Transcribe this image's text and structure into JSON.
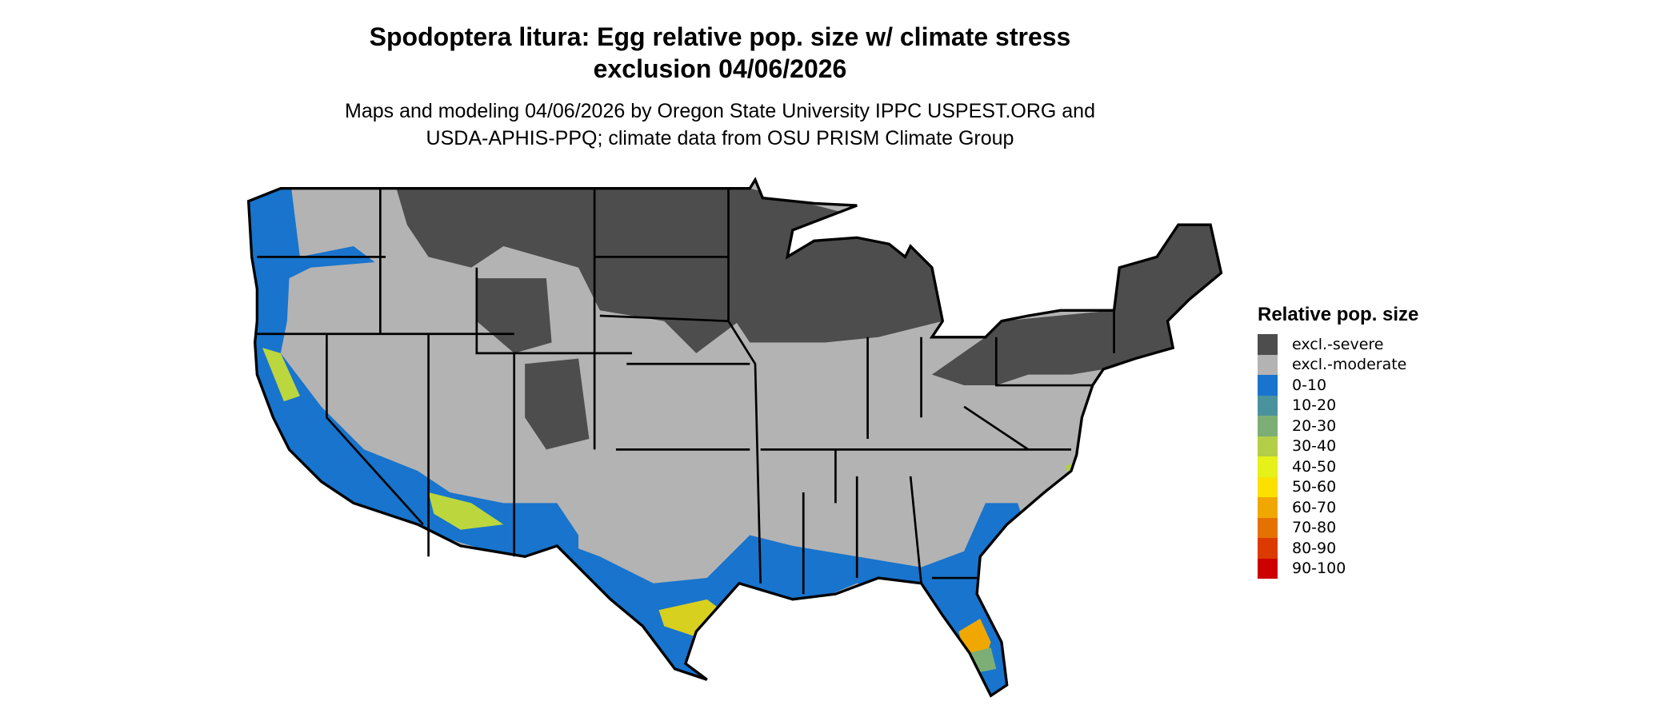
{
  "title": {
    "line1": "Spodoptera litura: Egg relative pop. size w/ climate stress",
    "line2": "exclusion 04/06/2026"
  },
  "subtitle": {
    "line1": "Maps and modeling 04/06/2026 by Oregon State University IPPC USPEST.ORG and",
    "line2": "USDA-APHIS-PPQ; climate data from OSU PRISM Climate Group"
  },
  "legend": {
    "title": "Relative pop. size",
    "items": [
      {
        "label": "excl.-severe",
        "color": "#4d4d4d"
      },
      {
        "label": "excl.-moderate",
        "color": "#b3b3b3"
      },
      {
        "label": "0-10",
        "color": "#1874cd"
      },
      {
        "label": "10-20",
        "color": "#4a929e"
      },
      {
        "label": "20-30",
        "color": "#7dae75"
      },
      {
        "label": "30-40",
        "color": "#b3cf47"
      },
      {
        "label": "40-50",
        "color": "#e6f019"
      },
      {
        "label": "50-60",
        "color": "#fae100"
      },
      {
        "label": "60-70",
        "color": "#f0a800"
      },
      {
        "label": "70-80",
        "color": "#e57200"
      },
      {
        "label": "80-90",
        "color": "#db3a00"
      },
      {
        "label": "90-100",
        "color": "#cd0000"
      }
    ]
  },
  "map": {
    "region": "contiguous United States",
    "border_color": "#000000"
  }
}
